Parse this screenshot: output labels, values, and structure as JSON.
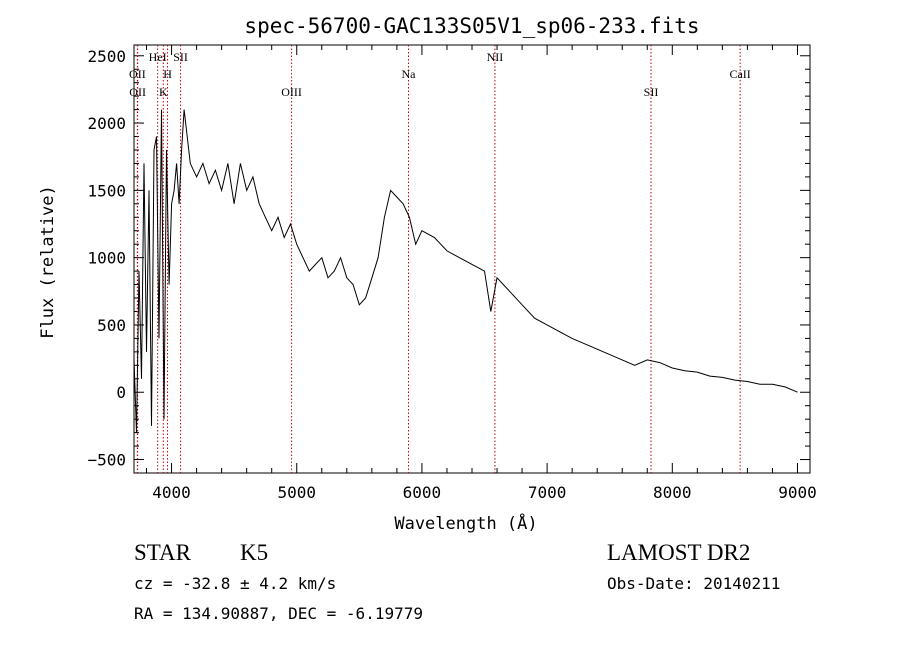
{
  "chart_data": {
    "type": "line",
    "title": "spec-56700-GAC133S05V1_sp06-233.fits",
    "xlabel": "Wavelength (Å)",
    "ylabel": "Flux (relative)",
    "xlim": [
      3700,
      9100
    ],
    "ylim": [
      -600,
      2580
    ],
    "x_ticks": [
      4000,
      5000,
      6000,
      7000,
      8000,
      9000
    ],
    "y_ticks": [
      -500,
      0,
      500,
      1000,
      1500,
      2000,
      2500
    ],
    "grid": false,
    "line_color": "#000000",
    "line_marker_color": "#c00000",
    "lines": [
      {
        "label": "OII",
        "wavelength": 3727,
        "row": 1
      },
      {
        "label": "OII",
        "wavelength": 3729,
        "row": 2
      },
      {
        "label": "HeI",
        "wavelength": 3889,
        "row": 0
      },
      {
        "label": "H",
        "wavelength": 3968,
        "row": 1
      },
      {
        "label": "K",
        "wavelength": 3934,
        "row": 2
      },
      {
        "label": "SII",
        "wavelength": 4072,
        "row": 0
      },
      {
        "label": "OIII",
        "wavelength": 4959,
        "row": 2
      },
      {
        "label": "Na",
        "wavelength": 5893,
        "row": 1
      },
      {
        "label": "NII",
        "wavelength": 6583,
        "row": 0
      },
      {
        "label": "SII",
        "wavelength": 7830,
        "row": 2
      },
      {
        "label": "CaII",
        "wavelength": 8542,
        "row": 1
      }
    ],
    "series": [
      {
        "x": [
          3700,
          3720,
          3740,
          3760,
          3780,
          3800,
          3820,
          3840,
          3860,
          3880,
          3900,
          3920,
          3940,
          3960,
          3980,
          4000,
          4020,
          4040,
          4060,
          4080,
          4100,
          4150,
          4200,
          4250,
          4300,
          4350,
          4400,
          4450,
          4500,
          4550,
          4600,
          4650,
          4700,
          4750,
          4800,
          4850,
          4900,
          4950,
          5000,
          5050,
          5100,
          5150,
          5200,
          5250,
          5300,
          5350,
          5400,
          5450,
          5500,
          5550,
          5600,
          5650,
          5700,
          5750,
          5800,
          5850,
          5900,
          5950,
          6000,
          6100,
          6200,
          6300,
          6400,
          6500,
          6550,
          6600,
          6700,
          6800,
          6900,
          7000,
          7100,
          7200,
          7300,
          7400,
          7500,
          7600,
          7700,
          7800,
          7900,
          8000,
          8100,
          8200,
          8300,
          8400,
          8500,
          8600,
          8700,
          8800,
          8900,
          9000
        ],
        "y": [
          250,
          -300,
          900,
          100,
          1700,
          300,
          1500,
          -250,
          1800,
          1900,
          400,
          2100,
          -200,
          1800,
          800,
          1400,
          1500,
          1700,
          1400,
          1800,
          2100,
          1700,
          1600,
          1700,
          1550,
          1650,
          1500,
          1700,
          1400,
          1700,
          1500,
          1600,
          1400,
          1300,
          1200,
          1300,
          1150,
          1250,
          1100,
          1000,
          900,
          950,
          1000,
          850,
          900,
          1000,
          850,
          800,
          650,
          700,
          850,
          1000,
          1300,
          1500,
          1450,
          1400,
          1300,
          1100,
          1200,
          1150,
          1050,
          1000,
          950,
          900,
          600,
          850,
          750,
          650,
          550,
          500,
          450,
          400,
          360,
          320,
          280,
          240,
          200,
          240,
          220,
          180,
          160,
          150,
          120,
          110,
          90,
          80,
          60,
          60,
          40,
          0
        ]
      }
    ]
  },
  "info": {
    "object_class": "STAR",
    "subclass": "K5",
    "cz": "cz = -32.8 ± 4.2 km/s",
    "coords": "RA = 134.90887, DEC =  -6.19779",
    "survey": "LAMOST DR2",
    "obs_date": "Obs-Date: 20140211"
  }
}
